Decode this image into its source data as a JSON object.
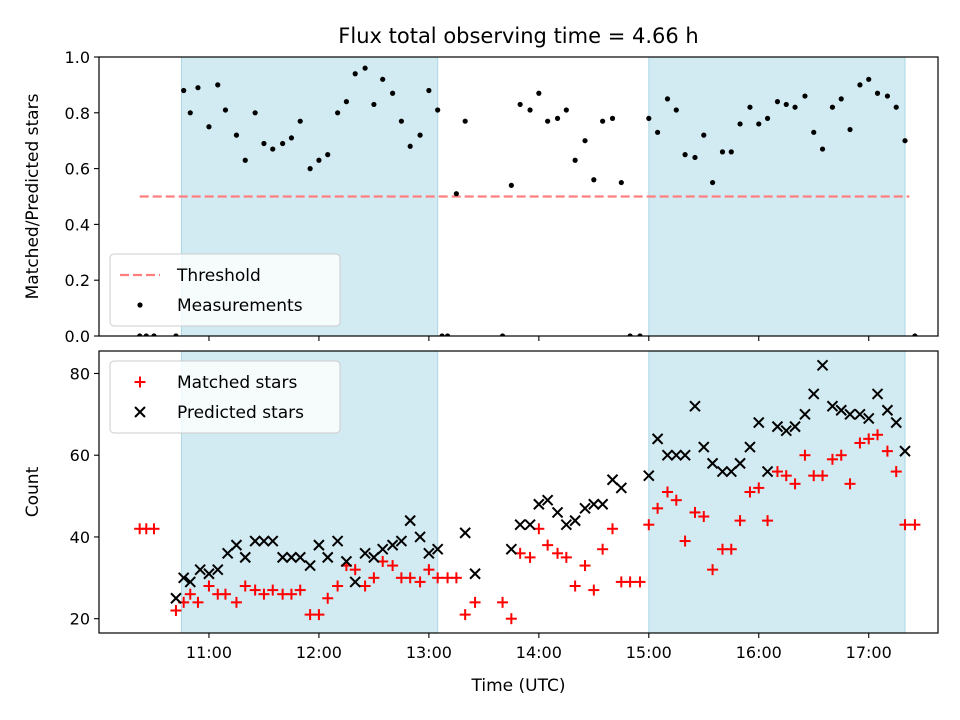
{
  "chart_data": {
    "title": "Flux total observing time = 4.66 h",
    "xlabel": "Time (UTC)",
    "x_unit": "hours UTC",
    "xlim": [
      10.0,
      17.63
    ],
    "xticks": [
      {
        "v": 11,
        "label": "11:00"
      },
      {
        "v": 12,
        "label": "12:00"
      },
      {
        "v": 13,
        "label": "13:00"
      },
      {
        "v": 14,
        "label": "14:00"
      },
      {
        "v": 15,
        "label": "15:00"
      },
      {
        "v": 16,
        "label": "16:00"
      },
      {
        "v": 17,
        "label": "17:00"
      }
    ],
    "shaded_intervals": [
      [
        10.75,
        13.08
      ],
      [
        15.0,
        17.33
      ]
    ],
    "colors": {
      "shade": "#add8e6",
      "threshold": "#ff7f7f",
      "matched": "#ff0000",
      "predicted": "#000000",
      "measurements": "#000000"
    },
    "panels": [
      {
        "type": "scatter",
        "ylabel": "Matched/Predicted stars",
        "ylim": [
          0.0,
          1.0
        ],
        "yticks": [
          {
            "v": 0.0,
            "label": "0.0"
          },
          {
            "v": 0.2,
            "label": "0.2"
          },
          {
            "v": 0.4,
            "label": "0.4"
          },
          {
            "v": 0.6,
            "label": "0.6"
          },
          {
            "v": 0.8,
            "label": "0.8"
          },
          {
            "v": 1.0,
            "label": "1.0"
          }
        ],
        "legend_position": "lower-left",
        "threshold": {
          "name": "Threshold",
          "value": 0.5,
          "x_range": [
            10.37,
            17.37
          ]
        },
        "series": [
          {
            "name": "Measurements",
            "marker": "dot",
            "x": [
              10.37,
              10.43,
              10.5,
              10.7,
              10.77,
              10.83,
              10.9,
              11.0,
              11.08,
              11.15,
              11.25,
              11.33,
              11.42,
              11.5,
              11.58,
              11.67,
              11.75,
              11.83,
              11.92,
              12.0,
              12.08,
              12.17,
              12.25,
              12.33,
              12.42,
              12.5,
              12.58,
              12.67,
              12.75,
              12.83,
              12.92,
              13.0,
              13.08,
              13.12,
              13.17,
              13.25,
              13.33,
              13.67,
              13.75,
              13.83,
              13.92,
              14.0,
              14.08,
              14.17,
              14.25,
              14.33,
              14.42,
              14.5,
              14.58,
              14.67,
              14.75,
              14.83,
              14.92,
              15.0,
              15.08,
              15.17,
              15.25,
              15.33,
              15.42,
              15.5,
              15.58,
              15.67,
              15.75,
              15.83,
              15.92,
              16.0,
              16.08,
              16.17,
              16.25,
              16.33,
              16.42,
              16.5,
              16.58,
              16.67,
              16.75,
              16.83,
              16.92,
              17.0,
              17.08,
              17.17,
              17.25,
              17.33,
              17.42
            ],
            "y": [
              0,
              0,
              0,
              0,
              0.88,
              0.8,
              0.89,
              0.75,
              0.9,
              0.81,
              0.72,
              0.63,
              0.8,
              0.69,
              0.67,
              0.69,
              0.71,
              0.77,
              0.6,
              0.63,
              0.65,
              0.8,
              0.84,
              0.94,
              0.96,
              0.83,
              0.92,
              0.87,
              0.77,
              0.68,
              0.72,
              0.88,
              0.81,
              0,
              0,
              0.51,
              0.77,
              0,
              0.54,
              0.83,
              0.81,
              0.87,
              0.77,
              0.78,
              0.81,
              0.63,
              0.7,
              0.56,
              0.77,
              0.78,
              0.55,
              0,
              0,
              0.78,
              0.73,
              0.85,
              0.81,
              0.65,
              0.64,
              0.72,
              0.55,
              0.66,
              0.66,
              0.76,
              0.82,
              0.76,
              0.78,
              0.84,
              0.83,
              0.82,
              0.86,
              0.73,
              0.67,
              0.82,
              0.85,
              0.74,
              0.9,
              0.92,
              0.87,
              0.86,
              0.82,
              0.7,
              0
            ]
          }
        ]
      },
      {
        "type": "scatter",
        "ylabel": "Count",
        "ylim": [
          16.5,
          85.5
        ],
        "yticks": [
          {
            "v": 20,
            "label": "20"
          },
          {
            "v": 40,
            "label": "40"
          },
          {
            "v": 60,
            "label": "60"
          },
          {
            "v": 80,
            "label": "80"
          }
        ],
        "legend_position": "upper-left",
        "series": [
          {
            "name": "Matched stars",
            "marker": "plus",
            "x": [
              10.37,
              10.43,
              10.5,
              10.7,
              10.77,
              10.83,
              10.9,
              11.0,
              11.08,
              11.15,
              11.25,
              11.33,
              11.42,
              11.5,
              11.58,
              11.67,
              11.75,
              11.83,
              11.92,
              12.0,
              12.08,
              12.17,
              12.25,
              12.33,
              12.42,
              12.5,
              12.58,
              12.67,
              12.75,
              12.83,
              12.92,
              13.0,
              13.08,
              13.17,
              13.25,
              13.33,
              13.42,
              13.67,
              13.75,
              13.83,
              13.92,
              14.0,
              14.08,
              14.17,
              14.25,
              14.33,
              14.42,
              14.5,
              14.58,
              14.67,
              14.75,
              14.83,
              14.92,
              15.0,
              15.08,
              15.17,
              15.25,
              15.33,
              15.42,
              15.5,
              15.58,
              15.67,
              15.75,
              15.83,
              15.92,
              16.0,
              16.08,
              16.17,
              16.25,
              16.33,
              16.42,
              16.5,
              16.58,
              16.67,
              16.75,
              16.83,
              16.92,
              17.0,
              17.08,
              17.17,
              17.25,
              17.33,
              17.42
            ],
            "y": [
              42,
              42,
              42,
              22,
              24,
              26,
              24,
              28,
              26,
              26,
              24,
              28,
              27,
              26,
              27,
              26,
              26,
              27,
              21,
              21,
              25,
              28,
              33,
              32,
              28,
              30,
              34,
              33,
              30,
              30,
              29,
              32,
              30,
              30,
              30,
              21,
              24,
              24,
              20,
              36,
              35,
              42,
              38,
              36,
              35,
              28,
              33,
              27,
              37,
              42,
              29,
              29,
              29,
              43,
              47,
              51,
              49,
              39,
              46,
              45,
              32,
              37,
              37,
              44,
              51,
              52,
              44,
              56,
              55,
              53,
              60,
              55,
              55,
              59,
              60,
              53,
              63,
              64,
              65,
              61,
              56,
              43,
              43
            ]
          },
          {
            "name": "Predicted stars",
            "marker": "x",
            "x": [
              10.7,
              10.77,
              10.83,
              10.92,
              11.0,
              11.08,
              11.17,
              11.25,
              11.33,
              11.42,
              11.5,
              11.58,
              11.67,
              11.75,
              11.83,
              11.92,
              12.0,
              12.08,
              12.17,
              12.25,
              12.33,
              12.42,
              12.5,
              12.58,
              12.67,
              12.75,
              12.83,
              12.92,
              13.0,
              13.08,
              13.33,
              13.42,
              13.75,
              13.83,
              13.92,
              14.0,
              14.08,
              14.17,
              14.25,
              14.33,
              14.42,
              14.5,
              14.58,
              14.67,
              14.75,
              15.0,
              15.08,
              15.17,
              15.25,
              15.33,
              15.42,
              15.5,
              15.58,
              15.67,
              15.75,
              15.83,
              15.92,
              16.0,
              16.08,
              16.17,
              16.25,
              16.33,
              16.42,
              16.5,
              16.58,
              16.67,
              16.75,
              16.83,
              16.92,
              17.0,
              17.08,
              17.17,
              17.25,
              17.33
            ],
            "y": [
              25,
              30,
              29,
              32,
              31,
              32,
              36,
              38,
              35,
              39,
              39,
              39,
              35,
              35,
              35,
              33,
              38,
              35,
              39,
              34,
              29,
              36,
              35,
              37,
              38,
              39,
              44,
              40,
              36,
              37,
              41,
              31,
              37,
              43,
              43,
              48,
              49,
              46,
              43,
              44,
              47,
              48,
              48,
              54,
              52,
              55,
              64,
              60,
              60,
              60,
              72,
              62,
              58,
              56,
              56,
              58,
              62,
              68,
              56,
              67,
              66,
              67,
              70,
              75,
              82,
              72,
              71,
              70,
              70,
              69,
              75,
              71,
              68,
              61
            ]
          }
        ]
      }
    ]
  }
}
